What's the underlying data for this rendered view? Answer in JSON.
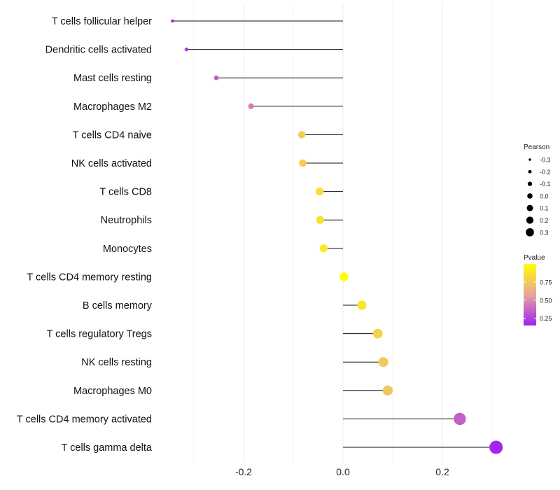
{
  "chart_data": {
    "type": "lollipop",
    "title": "",
    "xlabel": "",
    "ylabel": "",
    "xlim": [
      -0.345,
      0.32
    ],
    "xticks": [
      -0.2,
      0.0,
      0.2
    ],
    "xtick_labels": [
      "-0.2",
      "0.0",
      "0.2"
    ],
    "grid": true,
    "categories": [
      "T cells follicular helper",
      "Dendritic cells activated",
      "Mast cells resting",
      "Macrophages M2",
      "T cells CD4 naive",
      "NK cells activated",
      "T cells CD8",
      "Neutrophils",
      "Monocytes",
      "T cells CD4 memory resting",
      "B cells memory",
      "T cells regulatory  Tregs",
      "NK cells resting",
      "Macrophages M0",
      "T cells CD4 memory activated",
      "T cells gamma delta"
    ],
    "values": [
      -0.343,
      -0.315,
      -0.255,
      -0.185,
      -0.083,
      -0.081,
      -0.047,
      -0.046,
      -0.039,
      0.002,
      0.038,
      0.07,
      0.081,
      0.09,
      0.235,
      0.308
    ],
    "pvalues": [
      0.17,
      0.22,
      0.35,
      0.45,
      0.75,
      0.77,
      0.85,
      0.86,
      0.9,
      0.99,
      0.88,
      0.79,
      0.75,
      0.73,
      0.35,
      0.17
    ],
    "legend_size": {
      "title": "Pearson",
      "labels": [
        "-0.3",
        "-0.2",
        "-0.1",
        "0.0",
        "0.1",
        "0.2",
        "0.3"
      ],
      "values": [
        -0.3,
        -0.2,
        -0.1,
        0.0,
        0.1,
        0.2,
        0.3
      ]
    },
    "legend_color": {
      "title": "Pvalue",
      "labels": [
        "0.75",
        "0.50",
        "0.25"
      ],
      "values": [
        0.75,
        0.5,
        0.25
      ],
      "range": [
        0.15,
        1.0
      ],
      "low_color": "#a020f0",
      "mid_color": "#e8a59c",
      "high_color": "#ffff00"
    },
    "legend_position": "right"
  }
}
